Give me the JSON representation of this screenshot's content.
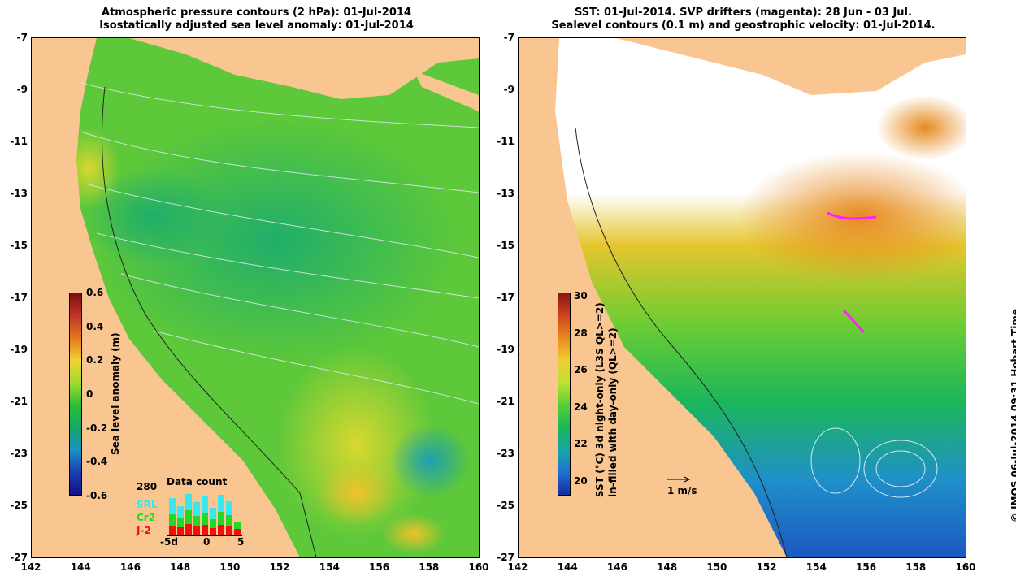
{
  "left_panel": {
    "title_line1": "Atmospheric pressure contours (2 hPa): 01-Jul-2014",
    "title_line2": "Isostatically adjusted sea level anomaly: 01-Jul-2014",
    "colorbar": {
      "label": "Sea level anomaly (m)",
      "ticks": [
        "0.6",
        "0.4",
        "0.2",
        "0",
        "-0.2",
        "-0.4",
        "-0.6"
      ],
      "colors": [
        "#7a1010",
        "#c0342a",
        "#e6781f",
        "#eed431",
        "#9fdb2e",
        "#2fbe33",
        "#14a86a",
        "#1e8fc0",
        "#1a3fb2",
        "#12108a"
      ]
    },
    "data_count": {
      "label": "Data count",
      "max_label": "280",
      "sources": [
        {
          "name": "SRL",
          "color": "#38e8f0"
        },
        {
          "name": "Cr2",
          "color": "#26d826"
        },
        {
          "name": "J-2",
          "color": "#f01010"
        }
      ],
      "x_ticks": [
        "-5d",
        "0",
        "5"
      ]
    }
  },
  "right_panel": {
    "title_line1": "SST: 01-Jul-2014. SVP drifters (magenta): 28 Jun - 03 Jul.",
    "title_line2": "Sealevel contours (0.1 m) and geostrophic velocity: 01-Jul-2014.",
    "colorbar": {
      "label_line1": "SST (°C) 3d night-only (L3S QL>=2)",
      "label_line2": "in-filled with day-only (QL>=2)",
      "ticks": [
        "30",
        "28",
        "26",
        "24",
        "22",
        "20"
      ],
      "colors": [
        "#8a1414",
        "#d0441c",
        "#ec8a1e",
        "#efcf30",
        "#bfe036",
        "#56cf35",
        "#1ab657",
        "#18a6a6",
        "#1f70d0",
        "#142d9e"
      ]
    },
    "velocity_scale": "1 m/s"
  },
  "axes": {
    "y_ticks": [
      "-7",
      "-9",
      "-11",
      "-13",
      "-15",
      "-17",
      "-19",
      "-21",
      "-23",
      "-25",
      "-27"
    ],
    "x_ticks": [
      "142",
      "144",
      "146",
      "148",
      "150",
      "152",
      "154",
      "156",
      "158",
      "160"
    ]
  },
  "footer": "© IMOS 06-Jul-2014 09:31 Hobart Time",
  "colors": {
    "land": "#f9c591",
    "sea_base": "#6ad23a",
    "cloud": "#ffffff"
  }
}
